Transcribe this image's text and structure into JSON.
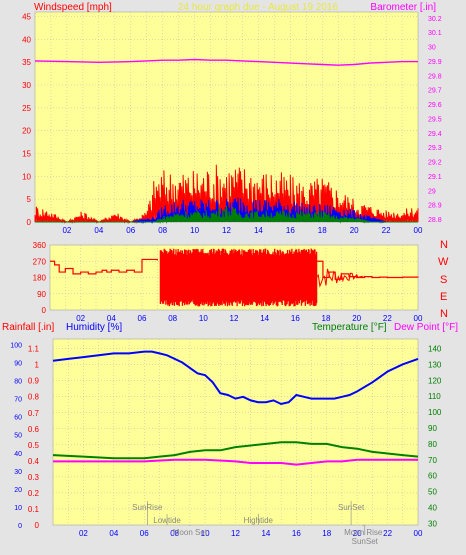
{
  "colors": {
    "page": "#e4e4e4",
    "plot_bg": "#ffff99",
    "grid": "#b8b8b8",
    "red": "#ff0000",
    "blue": "#0000ff",
    "green": "#008000",
    "magenta": "#ff00ff",
    "title": "#e8e840",
    "astro": "#888888"
  },
  "header": {
    "left": "Windspeed [mph]",
    "center": "24 hour graph due - August 19 2016",
    "right": "Barometer [.in]"
  },
  "compass": [
    "N",
    "W",
    "S",
    "E",
    "N"
  ],
  "bottom_labels": {
    "rainfall": "Rainfall [.in]",
    "humidity": "Humidity [%]",
    "temperature": "Temperature [°F]",
    "dewpoint": "Dew Point [°F]"
  },
  "hour_ticks": [
    "02",
    "04",
    "06",
    "08",
    "10",
    "12",
    "14",
    "16",
    "18",
    "20",
    "22",
    "00"
  ],
  "astro_events": [
    {
      "label": "SunRise",
      "hour": 6.2,
      "row": 0
    },
    {
      "label": "Lowtide",
      "hour": 7.5,
      "row": 1
    },
    {
      "label": "Moon Set",
      "hour": 9.0,
      "row": 2
    },
    {
      "label": "Hightide",
      "hour": 13.5,
      "row": 1
    },
    {
      "label": "SunSet",
      "hour": 19.6,
      "row": 0
    },
    {
      "label": "Moon Rise",
      "hour": 20.4,
      "row": 2
    },
    {
      "label": "SunSet",
      "hour": 20.5,
      "row": 3
    }
  ],
  "chart_data": [
    {
      "type": "line",
      "name": "wind-barometer",
      "x_range_hours": [
        0,
        24
      ],
      "y_left": {
        "label": "Windspeed [mph]",
        "ticks": [
          0,
          5,
          10,
          15,
          20,
          25,
          30,
          35,
          40,
          45
        ],
        "range": [
          0,
          46
        ]
      },
      "y_right": {
        "label": "Barometer [.in]",
        "ticks": [
          "28.8",
          "28.9",
          "29",
          "29.1",
          "29.2",
          "29.3",
          "29.4",
          "29.5",
          "29.6",
          "29.7",
          "29.8",
          "29.9",
          "30",
          "30.1",
          "30.2"
        ],
        "range": [
          28.78,
          30.24
        ]
      },
      "series": [
        {
          "name": "Barometer",
          "color": "#ff00ff",
          "axis": "right",
          "x": [
            0,
            2,
            4,
            6,
            7,
            8,
            9,
            10,
            11,
            12,
            13,
            14,
            15,
            16,
            17,
            18,
            19,
            20,
            21,
            22,
            23,
            24
          ],
          "y": [
            29.9,
            29.895,
            29.89,
            29.895,
            29.9,
            29.905,
            29.905,
            29.91,
            29.905,
            29.905,
            29.9,
            29.895,
            29.89,
            29.885,
            29.88,
            29.875,
            29.87,
            29.875,
            29.885,
            29.89,
            29.895,
            29.895
          ]
        },
        {
          "name": "Wind gust",
          "color": "#ff0000",
          "axis": "left",
          "x": [
            0,
            1,
            2,
            3,
            4,
            5,
            6,
            7,
            7.5,
            8,
            9,
            10,
            11,
            12,
            13,
            14,
            15,
            16,
            17,
            18,
            19,
            20,
            21,
            22,
            23,
            24
          ],
          "y": [
            3,
            2,
            0,
            2,
            0,
            2,
            0,
            2,
            8,
            9,
            9,
            9,
            10,
            10,
            10,
            9,
            9,
            8,
            7,
            8,
            6,
            4,
            3,
            2,
            2,
            3
          ]
        },
        {
          "name": "Wind average",
          "color": "#0000ff",
          "axis": "left",
          "x": [
            0,
            4,
            6,
            7.5,
            8,
            9,
            10,
            11,
            12,
            13,
            14,
            15,
            16,
            17,
            18,
            19,
            20,
            21,
            22,
            23,
            24
          ],
          "y": [
            0,
            0,
            0,
            1,
            3,
            4,
            4,
            4,
            4,
            5,
            4,
            4,
            4,
            3,
            3,
            3,
            2,
            1,
            0,
            0,
            0
          ]
        },
        {
          "name": "Wind low",
          "color": "#008000",
          "axis": "left",
          "x": [
            0,
            7.5,
            8,
            9,
            10,
            11,
            12,
            13,
            14,
            15,
            16,
            17,
            18,
            19,
            20,
            21,
            22,
            24
          ],
          "y": [
            0,
            0,
            1,
            2,
            2,
            2,
            3,
            2,
            2,
            2,
            2,
            2,
            2,
            1,
            1,
            0,
            0,
            0
          ]
        }
      ]
    },
    {
      "type": "line",
      "name": "wind-direction",
      "x_range_hours": [
        0,
        24
      ],
      "y_left": {
        "ticks": [
          0,
          90,
          180,
          270,
          360
        ],
        "range": [
          0,
          360
        ]
      },
      "series": [
        {
          "name": "Wind direction",
          "color": "#ff0000",
          "x": [
            0,
            0.3,
            0.6,
            1,
            1.5,
            2,
            2.5,
            3,
            3.4,
            3.7,
            4,
            4.5,
            5,
            5.5,
            6,
            6.5,
            7,
            7.2,
            17.4,
            17.8,
            18.2,
            18.6,
            19,
            19.5,
            20,
            20.5,
            21,
            21.5,
            22,
            22.5,
            23,
            24
          ],
          "y": [
            270,
            250,
            210,
            230,
            200,
            210,
            200,
            210,
            220,
            210,
            220,
            210,
            220,
            210,
            280,
            280,
            275,
            270,
            270,
            180,
            210,
            170,
            200,
            185,
            180,
            185,
            180,
            182,
            180,
            180,
            182,
            180
          ]
        },
        {
          "name": "Wind direction (variable)",
          "color": "#ff0000",
          "band": [
            7.2,
            17.4
          ],
          "y_low": 20,
          "y_high": 340
        }
      ]
    },
    {
      "type": "line",
      "name": "humidity-temperature",
      "x_range_hours": [
        0,
        24
      ],
      "y_left_rain": {
        "label": "Rainfall [.in]",
        "ticks": [
          "0",
          "0.1",
          "0.2",
          "0.3",
          "0.4",
          "0.5",
          "0.6",
          "0.7",
          "0.8",
          "0.9",
          "1",
          "1.1"
        ],
        "range": [
          0,
          1.16
        ]
      },
      "y_left_humidity": {
        "label": "Humidity [%]",
        "ticks": [
          0,
          10,
          20,
          30,
          40,
          50,
          60,
          70,
          80,
          90,
          100
        ],
        "range": [
          0,
          103
        ]
      },
      "y_right": {
        "label": "Temperature [°F]",
        "ticks": [
          30,
          40,
          50,
          60,
          70,
          80,
          90,
          100,
          110,
          120,
          130,
          140
        ],
        "range": [
          29,
          146
        ]
      },
      "series": [
        {
          "name": "Humidity",
          "color": "#0000ff",
          "axis": "humidity",
          "x": [
            0,
            1,
            2,
            3,
            4,
            5,
            6,
            6.5,
            7,
            7.5,
            8,
            8.5,
            9,
            9.5,
            10,
            10.5,
            11,
            11.5,
            12,
            12.5,
            13,
            13.5,
            14,
            14.5,
            15,
            15.5,
            16,
            16.5,
            17,
            17.5,
            18,
            18.5,
            19,
            19.5,
            20,
            21,
            22,
            23,
            24
          ],
          "y": [
            91,
            92,
            93,
            94,
            95,
            95,
            96,
            96,
            95,
            94,
            92,
            90,
            87,
            84,
            83,
            79,
            73,
            72,
            70,
            71,
            69,
            68,
            68,
            69,
            67,
            68,
            72,
            71,
            70,
            70,
            70,
            70,
            71,
            72,
            74,
            79,
            85,
            89,
            92
          ]
        },
        {
          "name": "Temperature",
          "color": "#008000",
          "axis": "right",
          "x": [
            0,
            2,
            4,
            6,
            7,
            8,
            9,
            10,
            11,
            12,
            13,
            14,
            15,
            16,
            17,
            18,
            19,
            20,
            21,
            22,
            23,
            24
          ],
          "y": [
            73,
            72,
            71,
            71,
            72,
            73,
            75,
            76,
            76,
            78,
            79,
            80,
            81,
            81,
            80,
            80,
            78,
            77,
            75,
            74,
            73,
            72
          ]
        },
        {
          "name": "Dew Point",
          "color": "#ff00ff",
          "axis": "right",
          "x": [
            0,
            2,
            4,
            6,
            8,
            10,
            12,
            13,
            14,
            15,
            16,
            17,
            18,
            19,
            20,
            22,
            24
          ],
          "y": [
            69,
            69,
            69,
            69,
            70,
            70,
            69,
            68,
            68,
            68,
            67,
            68,
            69,
            69,
            70,
            70,
            70
          ]
        }
      ]
    }
  ]
}
